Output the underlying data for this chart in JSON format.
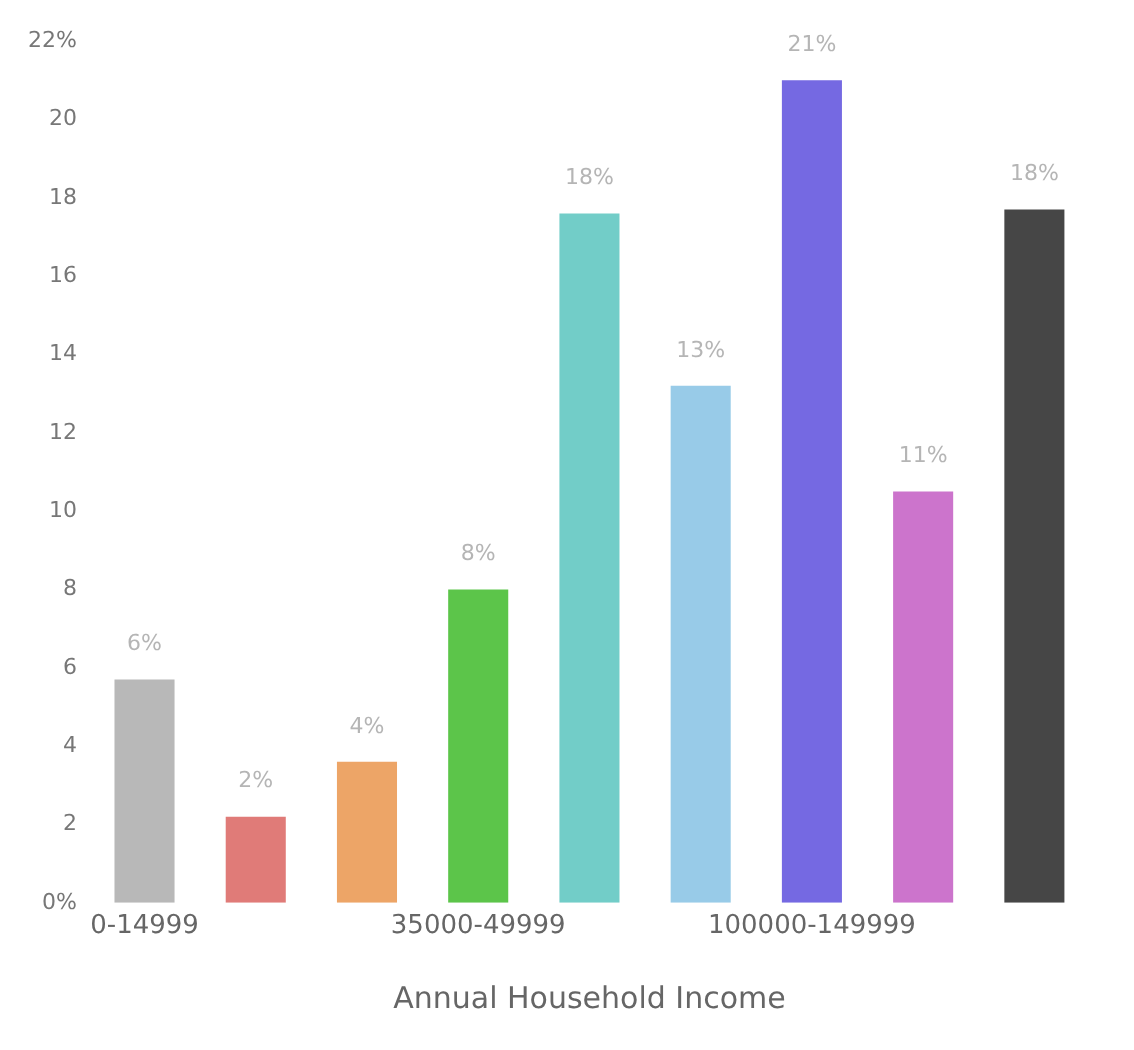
{
  "chart_data": {
    "type": "bar",
    "xlabel": "Annual Household Income",
    "categories": [
      "0-14999",
      null,
      null,
      "35000-49999",
      null,
      null,
      "100000-149999",
      null,
      null
    ],
    "values": [
      5.7,
      2.2,
      3.6,
      8.0,
      17.6,
      13.2,
      21.0,
      10.5,
      17.7
    ],
    "colors": [
      "#b8b8b8",
      "#e07b78",
      "#eda567",
      "#5cc54a",
      "#72cdc8",
      "#98cbe8",
      "#7569e2",
      "#cc74cc",
      "#464646"
    ],
    "value_labels": [
      "6%",
      "2%",
      "4%",
      "8%",
      "18%",
      "13%",
      "21%",
      "11%",
      "18%"
    ],
    "ylim": [
      0,
      22
    ],
    "yticks": [
      {
        "value": 0,
        "label": "0%"
      },
      2,
      4,
      6,
      8,
      10,
      12,
      14,
      16,
      18,
      20,
      {
        "value": 22,
        "label": "22%"
      }
    ],
    "grid": false
  }
}
